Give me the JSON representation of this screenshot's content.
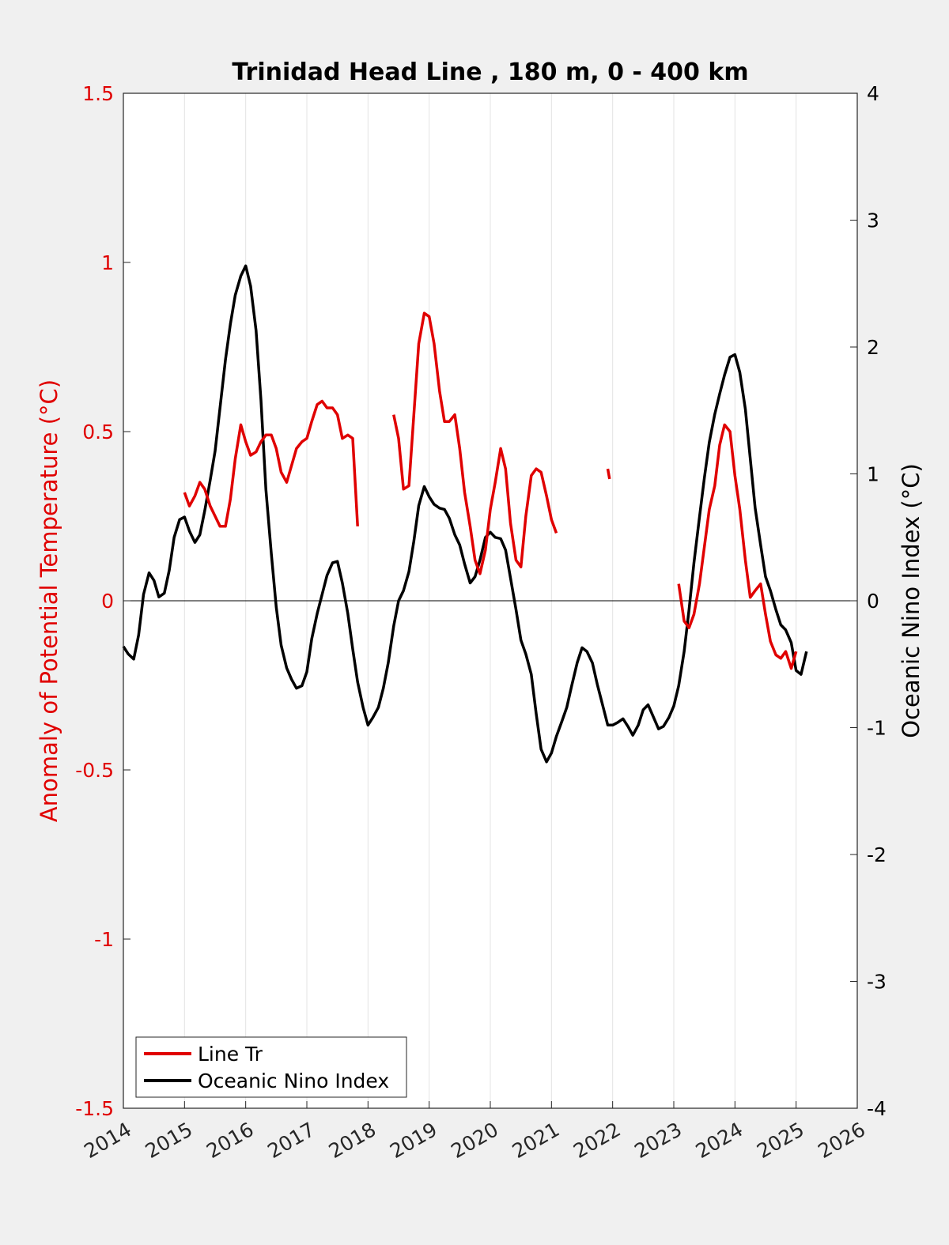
{
  "chart_data": {
    "type": "line",
    "title": "Trinidad Head Line , 180 m, 0 - 400 km",
    "ylabel_left": "Anomaly of Potential Temperature (°C)",
    "ylabel_right": "Oceanic Nino Index (°C)",
    "xlim": [
      2014,
      2026
    ],
    "ylim_left": [
      -1.5,
      1.5
    ],
    "ylim_right": [
      -4,
      4
    ],
    "x_ticks": [
      2014,
      2015,
      2016,
      2017,
      2018,
      2019,
      2020,
      2021,
      2022,
      2023,
      2024,
      2025,
      2026
    ],
    "y_ticks_left": [
      1.5,
      1,
      0.5,
      0,
      -0.5,
      -1,
      -1.5
    ],
    "y_ticks_left_labels": [
      "1.5",
      "1",
      "0.5",
      "0",
      "-0.5",
      "-1",
      "-1.5"
    ],
    "y_ticks_right": [
      4,
      3,
      2,
      1,
      0,
      -1,
      -2,
      -3,
      -4
    ],
    "y_ticks_right_labels": [
      "4",
      "3",
      "2",
      "1",
      "0",
      "-1",
      "-2",
      "-3",
      "-4"
    ],
    "grid": "vertical",
    "legend_position": "bottom-left",
    "colors": {
      "line_tr": "#e00000",
      "oni": "#000000"
    },
    "series": [
      {
        "name": "Line Tr",
        "axis": "left",
        "color": "#e00000",
        "segments": [
          [
            [
              2015.0,
              0.32
            ],
            [
              2015.08,
              0.28
            ],
            [
              2015.17,
              0.31
            ],
            [
              2015.25,
              0.35
            ],
            [
              2015.33,
              0.33
            ],
            [
              2015.42,
              0.28
            ],
            [
              2015.5,
              0.25
            ],
            [
              2015.58,
              0.22
            ],
            [
              2015.67,
              0.22
            ],
            [
              2015.75,
              0.3
            ],
            [
              2015.83,
              0.42
            ],
            [
              2015.92,
              0.52
            ],
            [
              2016.0,
              0.47
            ],
            [
              2016.08,
              0.43
            ],
            [
              2016.17,
              0.44
            ],
            [
              2016.25,
              0.47
            ],
            [
              2016.33,
              0.49
            ],
            [
              2016.42,
              0.49
            ],
            [
              2016.5,
              0.45
            ],
            [
              2016.58,
              0.38
            ],
            [
              2016.67,
              0.35
            ],
            [
              2016.75,
              0.4
            ],
            [
              2016.83,
              0.45
            ],
            [
              2016.92,
              0.47
            ],
            [
              2017.0,
              0.48
            ],
            [
              2017.08,
              0.53
            ],
            [
              2017.17,
              0.58
            ],
            [
              2017.25,
              0.59
            ],
            [
              2017.33,
              0.57
            ],
            [
              2017.42,
              0.57
            ],
            [
              2017.5,
              0.55
            ],
            [
              2017.58,
              0.48
            ],
            [
              2017.67,
              0.49
            ],
            [
              2017.75,
              0.48
            ],
            [
              2017.83,
              0.22
            ]
          ],
          [
            [
              2018.42,
              0.55
            ],
            [
              2018.5,
              0.48
            ],
            [
              2018.58,
              0.33
            ],
            [
              2018.67,
              0.34
            ],
            [
              2018.75,
              0.55
            ],
            [
              2018.83,
              0.76
            ],
            [
              2018.92,
              0.85
            ],
            [
              2019.0,
              0.84
            ],
            [
              2019.08,
              0.76
            ],
            [
              2019.17,
              0.62
            ],
            [
              2019.25,
              0.53
            ],
            [
              2019.33,
              0.53
            ],
            [
              2019.42,
              0.55
            ],
            [
              2019.5,
              0.45
            ],
            [
              2019.58,
              0.32
            ],
            [
              2019.67,
              0.22
            ],
            [
              2019.75,
              0.12
            ],
            [
              2019.83,
              0.08
            ],
            [
              2019.92,
              0.15
            ],
            [
              2020.0,
              0.27
            ],
            [
              2020.08,
              0.35
            ],
            [
              2020.17,
              0.45
            ],
            [
              2020.25,
              0.39
            ],
            [
              2020.33,
              0.23
            ],
            [
              2020.42,
              0.12
            ],
            [
              2020.5,
              0.1
            ],
            [
              2020.58,
              0.25
            ],
            [
              2020.67,
              0.37
            ],
            [
              2020.75,
              0.39
            ],
            [
              2020.83,
              0.38
            ],
            [
              2020.92,
              0.31
            ],
            [
              2021.0,
              0.24
            ],
            [
              2021.08,
              0.2
            ]
          ],
          [
            [
              2021.92,
              0.39
            ],
            [
              2021.95,
              0.36
            ]
          ],
          [
            [
              2023.08,
              0.05
            ],
            [
              2023.17,
              -0.06
            ],
            [
              2023.25,
              -0.08
            ],
            [
              2023.33,
              -0.04
            ],
            [
              2023.42,
              0.05
            ],
            [
              2023.5,
              0.16
            ],
            [
              2023.58,
              0.27
            ],
            [
              2023.67,
              0.34
            ],
            [
              2023.75,
              0.46
            ],
            [
              2023.83,
              0.52
            ],
            [
              2023.92,
              0.5
            ],
            [
              2024.0,
              0.37
            ],
            [
              2024.08,
              0.27
            ],
            [
              2024.17,
              0.12
            ],
            [
              2024.25,
              0.01
            ],
            [
              2024.33,
              0.03
            ],
            [
              2024.42,
              0.05
            ],
            [
              2024.5,
              -0.04
            ],
            [
              2024.58,
              -0.12
            ],
            [
              2024.67,
              -0.16
            ],
            [
              2024.75,
              -0.17
            ],
            [
              2024.83,
              -0.15
            ],
            [
              2024.92,
              -0.2
            ],
            [
              2025.0,
              -0.15
            ]
          ]
        ]
      },
      {
        "name": "Oceanic Nino Index",
        "axis": "right",
        "color": "#000000",
        "segments": [
          [
            [
              2014.0,
              -0.36
            ],
            [
              2014.08,
              -0.42
            ],
            [
              2014.17,
              -0.46
            ],
            [
              2014.25,
              -0.27
            ],
            [
              2014.33,
              0.05
            ],
            [
              2014.42,
              0.22
            ],
            [
              2014.5,
              0.16
            ],
            [
              2014.58,
              0.03
            ],
            [
              2014.67,
              0.06
            ],
            [
              2014.75,
              0.24
            ],
            [
              2014.83,
              0.5
            ],
            [
              2014.92,
              0.64
            ],
            [
              2015.0,
              0.66
            ],
            [
              2015.08,
              0.55
            ],
            [
              2015.17,
              0.46
            ],
            [
              2015.25,
              0.52
            ],
            [
              2015.33,
              0.71
            ],
            [
              2015.42,
              0.95
            ],
            [
              2015.5,
              1.18
            ],
            [
              2015.58,
              1.52
            ],
            [
              2015.67,
              1.9
            ],
            [
              2015.75,
              2.18
            ],
            [
              2015.83,
              2.41
            ],
            [
              2015.92,
              2.56
            ],
            [
              2016.0,
              2.64
            ],
            [
              2016.08,
              2.48
            ],
            [
              2016.17,
              2.13
            ],
            [
              2016.25,
              1.58
            ],
            [
              2016.33,
              0.88
            ],
            [
              2016.42,
              0.37
            ],
            [
              2016.5,
              -0.05
            ],
            [
              2016.58,
              -0.35
            ],
            [
              2016.67,
              -0.53
            ],
            [
              2016.75,
              -0.62
            ],
            [
              2016.83,
              -0.69
            ],
            [
              2016.92,
              -0.67
            ],
            [
              2017.0,
              -0.56
            ],
            [
              2017.08,
              -0.3
            ],
            [
              2017.17,
              -0.1
            ],
            [
              2017.25,
              0.05
            ],
            [
              2017.33,
              0.2
            ],
            [
              2017.42,
              0.3
            ],
            [
              2017.5,
              0.31
            ],
            [
              2017.58,
              0.14
            ],
            [
              2017.67,
              -0.1
            ],
            [
              2017.75,
              -0.38
            ],
            [
              2017.83,
              -0.64
            ],
            [
              2017.92,
              -0.84
            ],
            [
              2018.0,
              -0.98
            ],
            [
              2018.08,
              -0.92
            ],
            [
              2018.17,
              -0.84
            ],
            [
              2018.25,
              -0.69
            ],
            [
              2018.33,
              -0.49
            ],
            [
              2018.42,
              -0.2
            ],
            [
              2018.5,
              0.0
            ],
            [
              2018.58,
              0.08
            ],
            [
              2018.67,
              0.23
            ],
            [
              2018.75,
              0.47
            ],
            [
              2018.83,
              0.75
            ],
            [
              2018.92,
              0.9
            ],
            [
              2019.0,
              0.82
            ],
            [
              2019.08,
              0.76
            ],
            [
              2019.17,
              0.73
            ],
            [
              2019.25,
              0.72
            ],
            [
              2019.33,
              0.65
            ],
            [
              2019.42,
              0.52
            ],
            [
              2019.5,
              0.44
            ],
            [
              2019.58,
              0.29
            ],
            [
              2019.67,
              0.14
            ],
            [
              2019.75,
              0.19
            ],
            [
              2019.83,
              0.32
            ],
            [
              2019.92,
              0.5
            ],
            [
              2020.0,
              0.54
            ],
            [
              2020.08,
              0.5
            ],
            [
              2020.17,
              0.49
            ],
            [
              2020.25,
              0.4
            ],
            [
              2020.33,
              0.18
            ],
            [
              2020.42,
              -0.07
            ],
            [
              2020.5,
              -0.31
            ],
            [
              2020.58,
              -0.42
            ],
            [
              2020.67,
              -0.58
            ],
            [
              2020.75,
              -0.89
            ],
            [
              2020.83,
              -1.17
            ],
            [
              2020.92,
              -1.27
            ],
            [
              2021.0,
              -1.2
            ],
            [
              2021.08,
              -1.07
            ],
            [
              2021.17,
              -0.95
            ],
            [
              2021.25,
              -0.84
            ],
            [
              2021.33,
              -0.67
            ],
            [
              2021.42,
              -0.49
            ],
            [
              2021.5,
              -0.37
            ],
            [
              2021.58,
              -0.4
            ],
            [
              2021.67,
              -0.49
            ],
            [
              2021.75,
              -0.66
            ],
            [
              2021.83,
              -0.81
            ],
            [
              2021.92,
              -0.98
            ],
            [
              2022.0,
              -0.98
            ],
            [
              2022.08,
              -0.96
            ],
            [
              2022.17,
              -0.93
            ],
            [
              2022.25,
              -0.99
            ],
            [
              2022.33,
              -1.06
            ],
            [
              2022.42,
              -0.98
            ],
            [
              2022.5,
              -0.86
            ],
            [
              2022.58,
              -0.82
            ],
            [
              2022.67,
              -0.92
            ],
            [
              2022.75,
              -1.01
            ],
            [
              2022.83,
              -0.99
            ],
            [
              2022.92,
              -0.92
            ],
            [
              2023.0,
              -0.83
            ],
            [
              2023.08,
              -0.67
            ],
            [
              2023.17,
              -0.4
            ],
            [
              2023.25,
              -0.07
            ],
            [
              2023.33,
              0.3
            ],
            [
              2023.42,
              0.66
            ],
            [
              2023.5,
              0.97
            ],
            [
              2023.58,
              1.25
            ],
            [
              2023.67,
              1.47
            ],
            [
              2023.75,
              1.63
            ],
            [
              2023.83,
              1.78
            ],
            [
              2023.92,
              1.92
            ],
            [
              2024.0,
              1.94
            ],
            [
              2024.08,
              1.8
            ],
            [
              2024.17,
              1.51
            ],
            [
              2024.25,
              1.12
            ],
            [
              2024.33,
              0.73
            ],
            [
              2024.42,
              0.44
            ],
            [
              2024.5,
              0.19
            ],
            [
              2024.58,
              0.08
            ],
            [
              2024.67,
              -0.07
            ],
            [
              2024.75,
              -0.19
            ],
            [
              2024.83,
              -0.23
            ],
            [
              2024.92,
              -0.33
            ],
            [
              2025.0,
              -0.55
            ],
            [
              2025.08,
              -0.58
            ],
            [
              2025.17,
              -0.4
            ]
          ]
        ]
      }
    ]
  }
}
